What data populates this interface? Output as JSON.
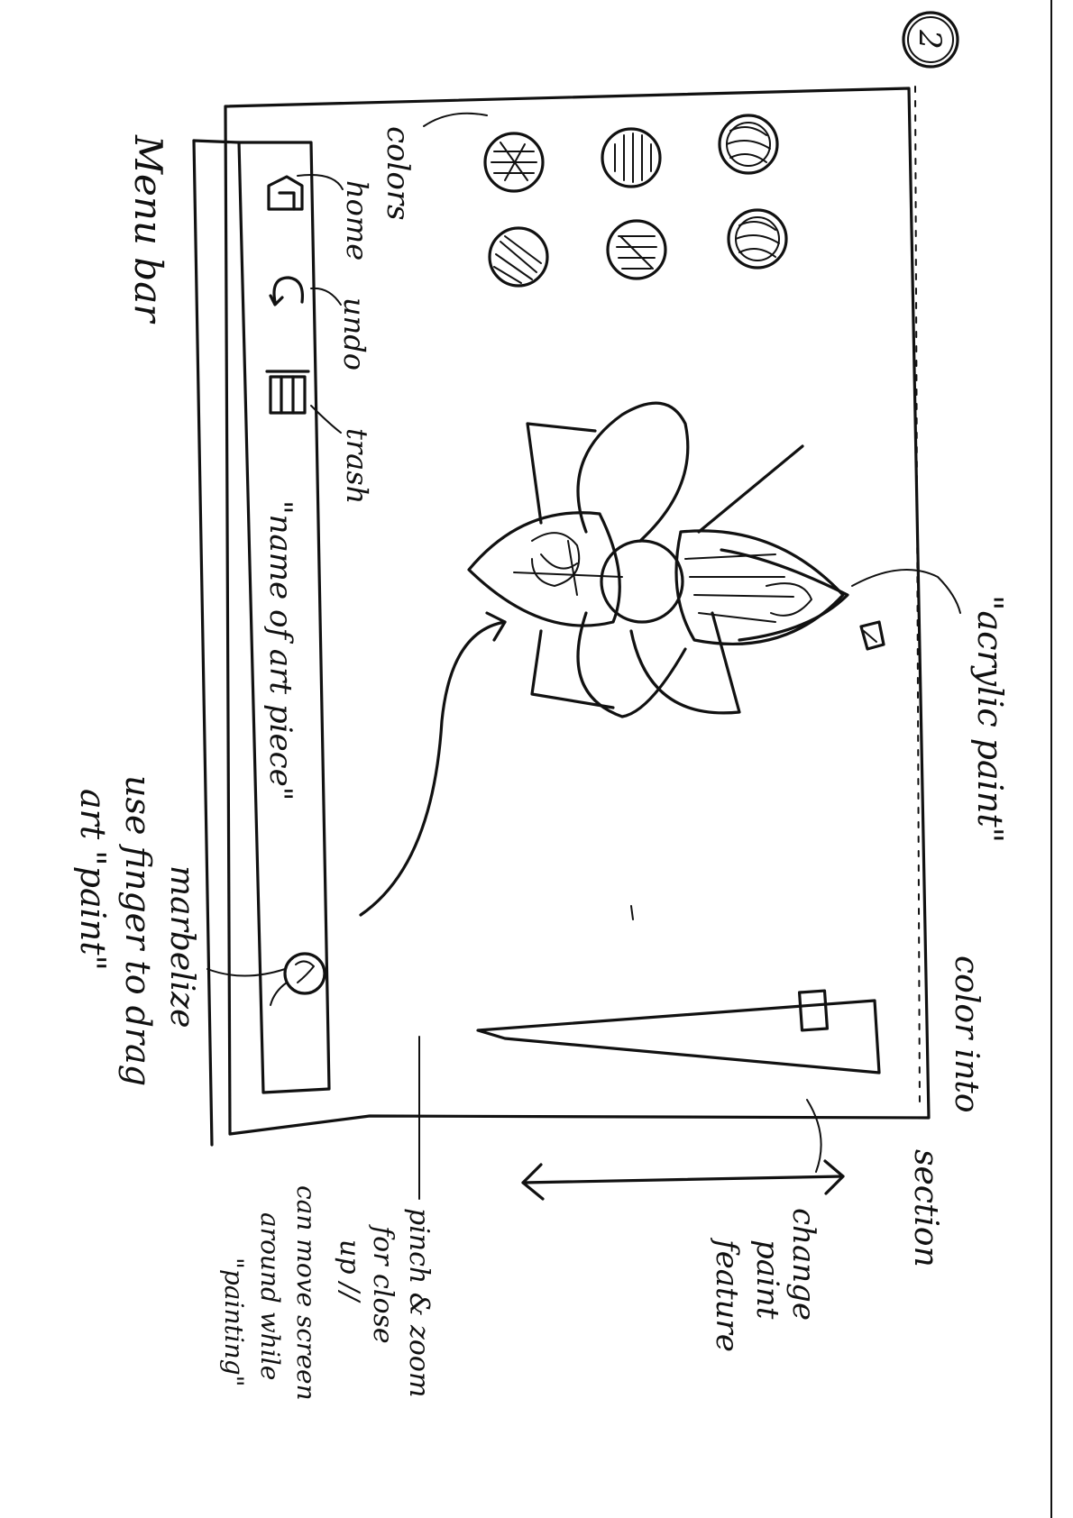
{
  "page_number": "2",
  "annotations": {
    "menu_bar": "Menu bar",
    "colors": "colors",
    "home": "home",
    "undo": "undo",
    "trash": "trash",
    "art_name": "\"name of art piece\"",
    "marbelize": "marbelize",
    "finger_paint_line1": "use finger to drag",
    "finger_paint_line2": "art \"paint\"",
    "acrylic_paint": "\"acrylic paint\"",
    "color_into": "color into",
    "section": "section",
    "change_line1": "change",
    "change_line2": "paint",
    "change_line3": "feature",
    "pinch_line1": "pinch & zoom",
    "pinch_line2": "for close",
    "pinch_line3": "up //",
    "pinch_line4": "can move screen",
    "pinch_line5": "around while",
    "pinch_line6": "\"painting\""
  },
  "icons": {
    "home": "home-icon",
    "undo": "undo-icon",
    "trash": "trash-icon",
    "marbelize": "marbelize-icon",
    "paint_bucket": "paint-bucket-icon"
  },
  "colors": {
    "ink": "#111111",
    "paper": "#ffffff"
  }
}
